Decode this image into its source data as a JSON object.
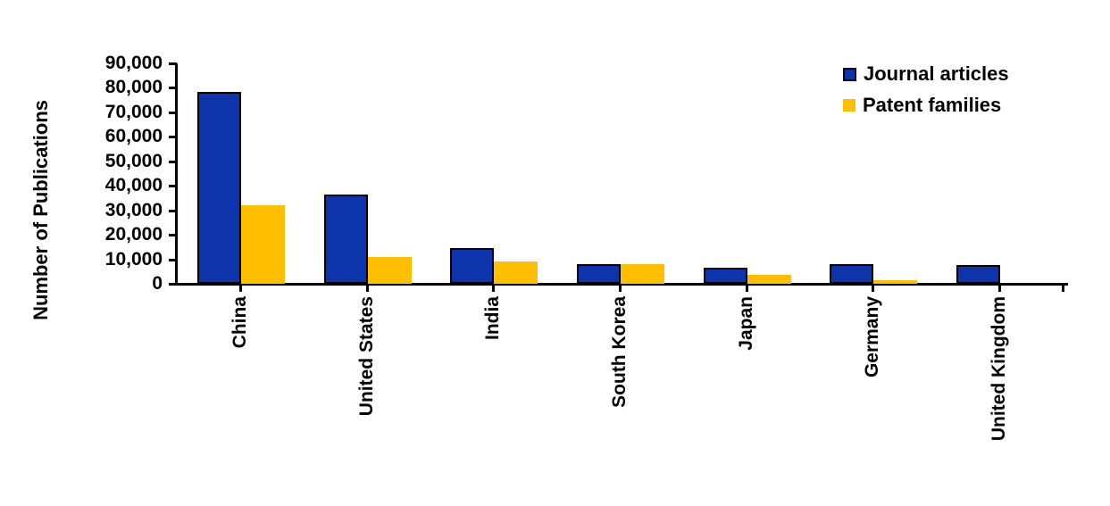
{
  "chart_data": {
    "type": "bar",
    "title": "",
    "xlabel": "",
    "ylabel": "Number of Publications",
    "ylim": [
      0,
      90000
    ],
    "ytick_step": 10000,
    "ytick_labels": [
      "0",
      "10,000",
      "20,000",
      "30,000",
      "40,000",
      "50,000",
      "60,000",
      "70,000",
      "80,000",
      "90,000"
    ],
    "grid": false,
    "legend_position": "top-right",
    "categories": [
      "China",
      "United States",
      "India",
      "South Korea",
      "Japan",
      "Germany",
      "United Kingdom"
    ],
    "series": [
      {
        "name": "Journal articles",
        "color": "#0d34aa",
        "values": [
          78500,
          36400,
          14500,
          8100,
          6700,
          8000,
          7500
        ]
      },
      {
        "name": "Patent families",
        "color": "#ffbf00",
        "values": [
          32000,
          10800,
          9000,
          7900,
          3500,
          1400,
          0
        ]
      }
    ]
  }
}
